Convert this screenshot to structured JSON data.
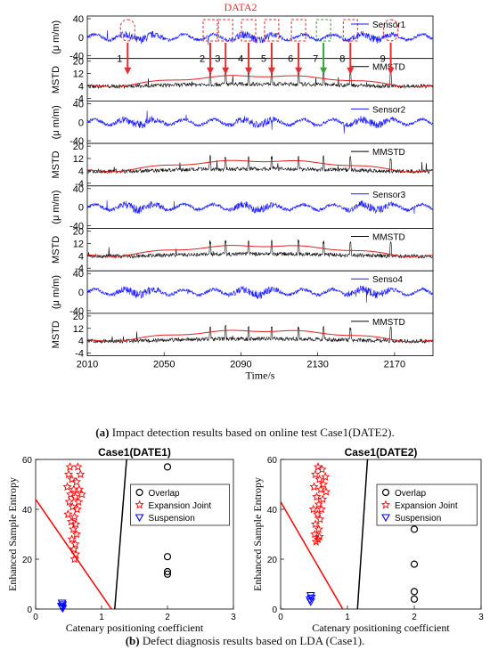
{
  "top_figure": {
    "data_label": "DATA2",
    "xlabel": "Time/s",
    "x_ticks": [
      "2010",
      "2050",
      "2090",
      "2130",
      "2170"
    ],
    "xlim": [
      2010,
      2190
    ],
    "sensor_ylabel": "(μ m/m)",
    "mstd_ylabel": "MSTD",
    "sensor_ticks": [
      "40",
      "0",
      "-40"
    ],
    "mstd_ticks": [
      "20",
      "12",
      "4",
      "-4"
    ],
    "panels": [
      {
        "kind": "sensor",
        "legend": "Sensor1"
      },
      {
        "kind": "mstd",
        "legend": "MMSTD"
      },
      {
        "kind": "sensor",
        "legend": "Sensor2"
      },
      {
        "kind": "mstd",
        "legend": "MMSTD"
      },
      {
        "kind": "sensor",
        "legend": "Sensor3"
      },
      {
        "kind": "mstd",
        "legend": "MMSTD"
      },
      {
        "kind": "sensor",
        "legend": "Senso4"
      },
      {
        "kind": "mstd",
        "legend": "MMSTD"
      }
    ],
    "event_markers": [
      {
        "label": "1",
        "x": 2031,
        "color": "#e03030"
      },
      {
        "label": "2",
        "x": 2074,
        "color": "#e03030"
      },
      {
        "label": "3",
        "x": 2082,
        "color": "#e03030"
      },
      {
        "label": "4",
        "x": 2094,
        "color": "#e03030"
      },
      {
        "label": "5",
        "x": 2106,
        "color": "#e03030"
      },
      {
        "label": "6",
        "x": 2120,
        "color": "#e03030"
      },
      {
        "label": "7",
        "x": 2133,
        "color": "#3aa040"
      },
      {
        "label": "8",
        "x": 2147,
        "color": "#e03030"
      },
      {
        "label": "9",
        "x": 2168,
        "color": "#e03030"
      }
    ],
    "colors": {
      "sensor": "#1a1aff",
      "threshold": "#e02020",
      "mstd": "#000000",
      "marker": "#e03030"
    }
  },
  "caption_a": {
    "prefix": "(a)",
    "text": " Impact detection results based on online test Case1(DATE2)."
  },
  "caption_b": {
    "prefix": "(b)",
    "text": " Defect diagnosis results based on LDA (Case1)."
  },
  "chart_data": [
    {
      "type": "scatter",
      "title": "Case1(DATE1)",
      "xlabel": "Catenary positioning coefficient",
      "ylabel": "Enhanced Sample Entropy",
      "xlim": [
        0,
        3
      ],
      "ylim": [
        0,
        60
      ],
      "x_ticks": [
        "0",
        "1",
        "2",
        "3"
      ],
      "y_ticks": [
        "0",
        "20",
        "40",
        "60"
      ],
      "legend": [
        "Overlap",
        "Expansion Joint",
        "Suspension"
      ],
      "series": [
        {
          "name": "Overlap",
          "marker": "circle",
          "color": "#000000",
          "points": [
            [
              2.0,
              57
            ],
            [
              2.0,
              21
            ],
            [
              2.0,
              15
            ],
            [
              2.0,
              14
            ]
          ]
        },
        {
          "name": "Expansion Joint",
          "marker": "star",
          "color": "#ff0000",
          "points": [
            [
              0.52,
              57
            ],
            [
              0.64,
              57
            ],
            [
              0.5,
              54
            ],
            [
              0.68,
              54
            ],
            [
              0.55,
              52
            ],
            [
              0.62,
              51
            ],
            [
              0.48,
              49
            ],
            [
              0.58,
              48
            ],
            [
              0.66,
              48
            ],
            [
              0.53,
              46
            ],
            [
              0.7,
              46
            ],
            [
              0.6,
              45
            ],
            [
              0.51,
              43
            ],
            [
              0.65,
              43
            ],
            [
              0.56,
              41
            ],
            [
              0.63,
              40
            ],
            [
              0.49,
              38
            ],
            [
              0.59,
              37
            ],
            [
              0.54,
              35
            ],
            [
              0.61,
              34
            ],
            [
              0.57,
              32
            ],
            [
              0.62,
              30
            ],
            [
              0.55,
              28
            ],
            [
              0.6,
              26
            ],
            [
              0.58,
              24
            ],
            [
              0.61,
              22
            ],
            [
              0.59,
              20
            ]
          ]
        },
        {
          "name": "Suspension",
          "marker": "triangle-down",
          "color": "#0000ff",
          "points": [
            [
              0.4,
              2.5
            ],
            [
              0.41,
              1.8
            ],
            [
              0.39,
              1.2
            ],
            [
              0.4,
              0.7
            ],
            [
              0.41,
              0.3
            ]
          ]
        }
      ],
      "boundaries": [
        {
          "color": "#ff0000",
          "x": [
            0,
            1.15
          ],
          "y": [
            44,
            0
          ]
        },
        {
          "color": "#000000",
          "x": [
            1.2,
            1.38
          ],
          "y": [
            0,
            60
          ]
        }
      ]
    },
    {
      "type": "scatter",
      "title": "Case1(DATE2)",
      "xlabel": "Catenary positioning coefficient",
      "ylabel": "Enhanced Sample Entropy",
      "xlim": [
        0,
        3
      ],
      "ylim": [
        0,
        60
      ],
      "x_ticks": [
        "0",
        "1",
        "2",
        "3"
      ],
      "y_ticks": [
        "0",
        "20",
        "40",
        "60"
      ],
      "legend": [
        "Overlap",
        "Expansion Joint",
        "Suspension"
      ],
      "series": [
        {
          "name": "Overlap",
          "marker": "circle",
          "color": "#000000",
          "points": [
            [
              2.0,
              32
            ],
            [
              2.0,
              18
            ],
            [
              2.0,
              7
            ],
            [
              2.0,
              4
            ]
          ]
        },
        {
          "name": "Expansion Joint",
          "marker": "star",
          "color": "#ff0000",
          "points": [
            [
              0.56,
              57
            ],
            [
              0.62,
              56
            ],
            [
              0.52,
              54
            ],
            [
              0.67,
              53
            ],
            [
              0.58,
              52
            ],
            [
              0.64,
              50
            ],
            [
              0.5,
              49
            ],
            [
              0.6,
              48
            ],
            [
              0.68,
              47
            ],
            [
              0.54,
              45
            ],
            [
              0.63,
              44
            ],
            [
              0.57,
              42
            ],
            [
              0.49,
              40
            ],
            [
              0.61,
              40
            ],
            [
              0.55,
              38
            ],
            [
              0.59,
              36
            ],
            [
              0.52,
              34
            ],
            [
              0.57,
              32
            ],
            [
              0.51,
              30
            ],
            [
              0.56,
              28
            ],
            [
              0.53,
              27
            ],
            [
              0.58,
              29
            ]
          ]
        },
        {
          "name": "Suspension",
          "marker": "triangle-down",
          "color": "#0000ff",
          "points": [
            [
              0.45,
              5.5
            ],
            [
              0.46,
              4.5
            ],
            [
              0.44,
              3.8
            ],
            [
              0.45,
              3.0
            ]
          ]
        }
      ],
      "boundaries": [
        {
          "color": "#ff0000",
          "x": [
            0,
            0.93
          ],
          "y": [
            43,
            0
          ]
        },
        {
          "color": "#000000",
          "x": [
            1.15,
            1.3
          ],
          "y": [
            0,
            60
          ]
        }
      ]
    }
  ]
}
